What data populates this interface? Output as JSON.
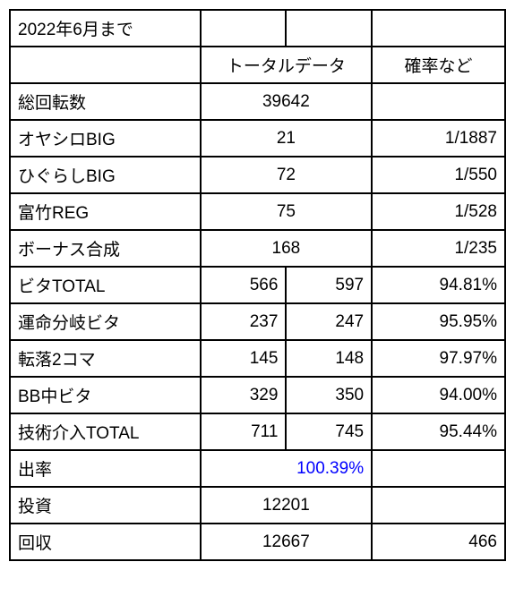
{
  "title": "2022年6月まで",
  "headers": {
    "total_data": "トータルデータ",
    "probability": "確率など"
  },
  "rows": {
    "total_spins": {
      "label": "総回転数",
      "value": "39642"
    },
    "oyashiro_big": {
      "label": "オヤシロBIG",
      "value": "21",
      "prob": "1/1887"
    },
    "higurashi_big": {
      "label": "ひぐらしBIG",
      "value": "72",
      "prob": "1/550"
    },
    "tomitake_reg": {
      "label": "富竹REG",
      "value": "75",
      "prob": "1/528"
    },
    "bonus_total": {
      "label": "ボーナス合成",
      "value": "168",
      "prob": "1/235"
    },
    "bita_total": {
      "label": "ビタTOTAL",
      "a": "566",
      "b": "597",
      "pct": "94.81%"
    },
    "unmei_bita": {
      "label": "運命分岐ビタ",
      "a": "237",
      "b": "247",
      "pct": "95.95%"
    },
    "tenraku": {
      "label": "転落2コマ",
      "a": "145",
      "b": "148",
      "pct": "97.97%"
    },
    "bb_bita": {
      "label": "BB中ビタ",
      "a": "329",
      "b": "350",
      "pct": "94.00%"
    },
    "gijutsu_total": {
      "label": "技術介入TOTAL",
      "a": "711",
      "b": "745",
      "pct": "95.44%"
    },
    "rate": {
      "label": "出率",
      "value": "100.39%"
    },
    "investment": {
      "label": "投資",
      "value": "12201"
    },
    "recovery": {
      "label": "回収",
      "value": "12667",
      "extra": "466"
    }
  }
}
